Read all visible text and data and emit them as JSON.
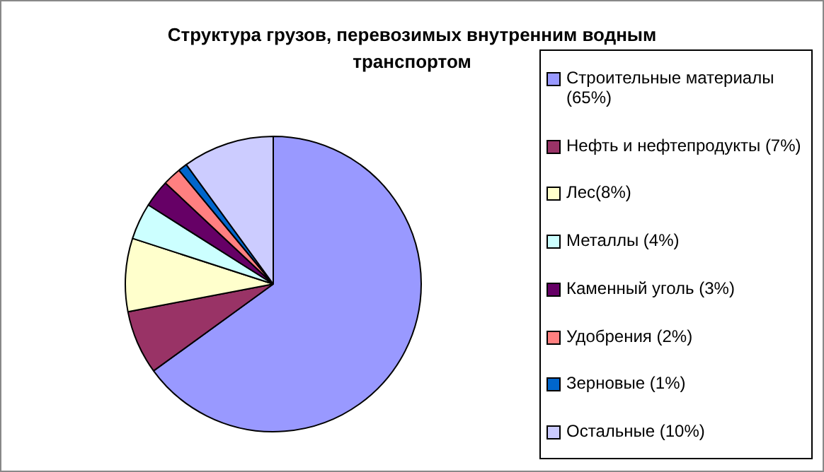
{
  "chart_data": {
    "type": "pie",
    "title": "Структура грузов, перевозимых внутренним водным транспортом",
    "categories": [
      "Строительные материалы (65%)",
      "Нефть и нефтепродукты (7%)",
      "Лес(8%)",
      "Металлы (4%)",
      "Каменный уголь (3%)",
      "Удобрения (2%)",
      "Зерновые (1%)",
      "Остальные (10%)"
    ],
    "values": [
      65,
      7,
      8,
      4,
      3,
      2,
      1,
      10
    ],
    "colors": [
      "#9999ff",
      "#993366",
      "#ffffcc",
      "#ccffff",
      "#660066",
      "#ff8080",
      "#0066cc",
      "#ccccff"
    ],
    "legend": "right"
  }
}
